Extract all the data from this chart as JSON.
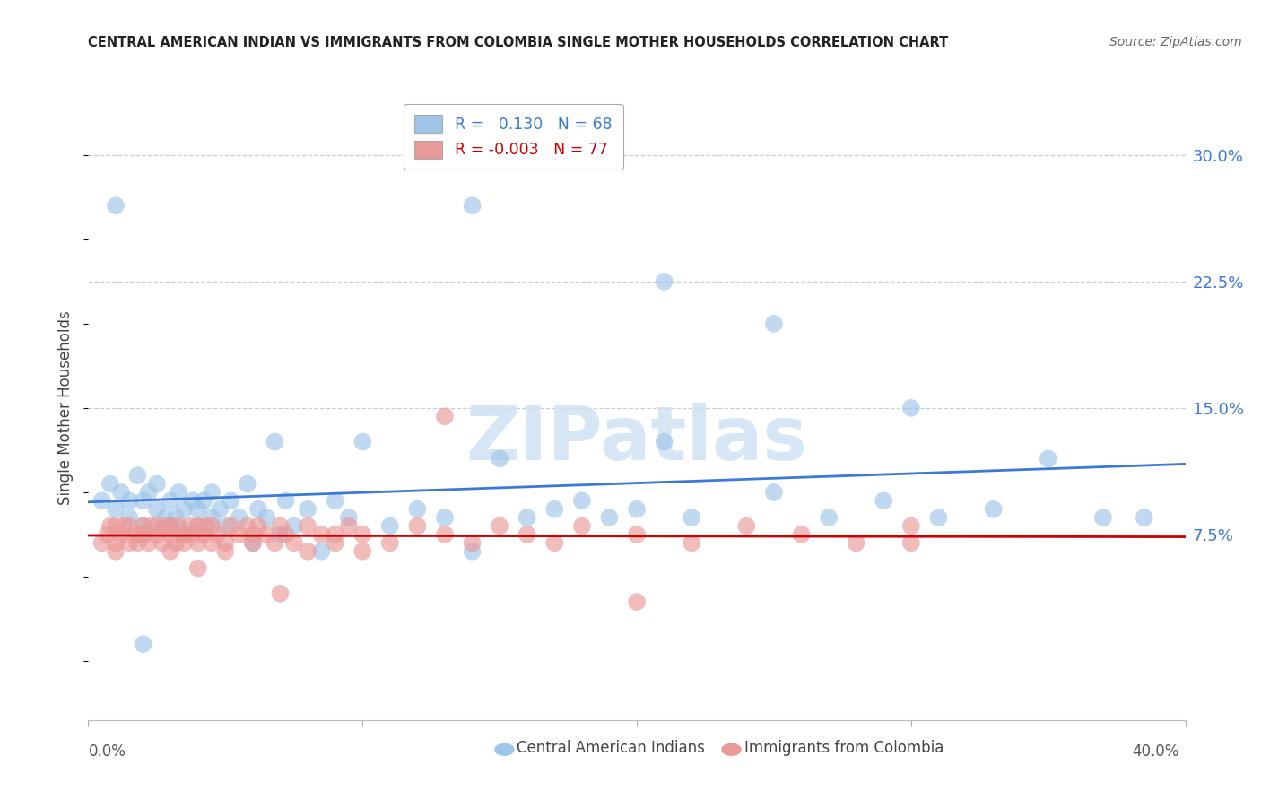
{
  "title": "CENTRAL AMERICAN INDIAN VS IMMIGRANTS FROM COLOMBIA SINGLE MOTHER HOUSEHOLDS CORRELATION CHART",
  "source": "Source: ZipAtlas.com",
  "ylabel": "Single Mother Households",
  "ytick_values": [
    0.075,
    0.15,
    0.225,
    0.3
  ],
  "xmin": 0.0,
  "xmax": 0.4,
  "ymin": -0.035,
  "ymax": 0.335,
  "R_blue": 0.13,
  "N_blue": 68,
  "R_pink": -0.003,
  "N_pink": 77,
  "legend_label_blue": "Central American Indians",
  "legend_label_pink": "Immigrants from Colombia",
  "blue_color": "#9fc5e8",
  "pink_color": "#ea9999",
  "line_blue": "#3c78d8",
  "line_pink": "#cc0000",
  "watermark_color": "#cfe2f3",
  "blue_x": [
    0.005,
    0.008,
    0.01,
    0.012,
    0.015,
    0.015,
    0.018,
    0.02,
    0.02,
    0.022,
    0.025,
    0.025,
    0.028,
    0.03,
    0.03,
    0.032,
    0.033,
    0.035,
    0.035,
    0.038,
    0.04,
    0.04,
    0.042,
    0.045,
    0.045,
    0.048,
    0.05,
    0.052,
    0.055,
    0.058,
    0.06,
    0.062,
    0.065,
    0.068,
    0.07,
    0.072,
    0.075,
    0.08,
    0.085,
    0.09,
    0.095,
    0.1,
    0.11,
    0.12,
    0.13,
    0.14,
    0.15,
    0.16,
    0.17,
    0.18,
    0.19,
    0.2,
    0.21,
    0.22,
    0.25,
    0.27,
    0.29,
    0.31,
    0.33,
    0.35,
    0.37,
    0.385,
    0.14,
    0.21,
    0.25,
    0.3,
    0.01,
    0.02
  ],
  "blue_y": [
    0.095,
    0.105,
    0.09,
    0.1,
    0.095,
    0.085,
    0.11,
    0.095,
    0.08,
    0.1,
    0.09,
    0.105,
    0.085,
    0.095,
    0.08,
    0.085,
    0.1,
    0.09,
    0.075,
    0.095,
    0.08,
    0.09,
    0.095,
    0.085,
    0.1,
    0.09,
    0.08,
    0.095,
    0.085,
    0.105,
    0.07,
    0.09,
    0.085,
    0.13,
    0.075,
    0.095,
    0.08,
    0.09,
    0.065,
    0.095,
    0.085,
    0.13,
    0.08,
    0.09,
    0.085,
    0.065,
    0.12,
    0.085,
    0.09,
    0.095,
    0.085,
    0.09,
    0.13,
    0.085,
    0.1,
    0.085,
    0.095,
    0.085,
    0.09,
    0.12,
    0.085,
    0.085,
    0.27,
    0.225,
    0.2,
    0.15,
    0.27,
    0.01
  ],
  "pink_x": [
    0.005,
    0.007,
    0.008,
    0.01,
    0.01,
    0.012,
    0.013,
    0.015,
    0.015,
    0.017,
    0.018,
    0.02,
    0.02,
    0.022,
    0.023,
    0.025,
    0.025,
    0.027,
    0.028,
    0.03,
    0.03,
    0.032,
    0.033,
    0.035,
    0.035,
    0.037,
    0.038,
    0.04,
    0.04,
    0.042,
    0.043,
    0.045,
    0.045,
    0.047,
    0.05,
    0.052,
    0.055,
    0.058,
    0.06,
    0.062,
    0.065,
    0.068,
    0.07,
    0.072,
    0.075,
    0.08,
    0.085,
    0.09,
    0.095,
    0.1,
    0.11,
    0.12,
    0.13,
    0.14,
    0.15,
    0.16,
    0.17,
    0.18,
    0.2,
    0.22,
    0.24,
    0.26,
    0.28,
    0.3,
    0.13,
    0.3,
    0.2,
    0.01,
    0.02,
    0.03,
    0.04,
    0.05,
    0.06,
    0.07,
    0.08,
    0.09,
    0.1
  ],
  "pink_y": [
    0.07,
    0.075,
    0.08,
    0.07,
    0.08,
    0.075,
    0.08,
    0.07,
    0.08,
    0.075,
    0.07,
    0.075,
    0.08,
    0.07,
    0.08,
    0.075,
    0.08,
    0.07,
    0.08,
    0.075,
    0.08,
    0.07,
    0.08,
    0.075,
    0.07,
    0.08,
    0.075,
    0.07,
    0.08,
    0.075,
    0.08,
    0.07,
    0.08,
    0.075,
    0.07,
    0.08,
    0.075,
    0.08,
    0.07,
    0.08,
    0.075,
    0.07,
    0.08,
    0.075,
    0.07,
    0.08,
    0.075,
    0.07,
    0.08,
    0.075,
    0.07,
    0.08,
    0.075,
    0.07,
    0.08,
    0.075,
    0.07,
    0.08,
    0.075,
    0.07,
    0.08,
    0.075,
    0.07,
    0.08,
    0.145,
    0.07,
    0.035,
    0.065,
    0.075,
    0.065,
    0.055,
    0.065,
    0.075,
    0.04,
    0.065,
    0.075,
    0.065
  ]
}
